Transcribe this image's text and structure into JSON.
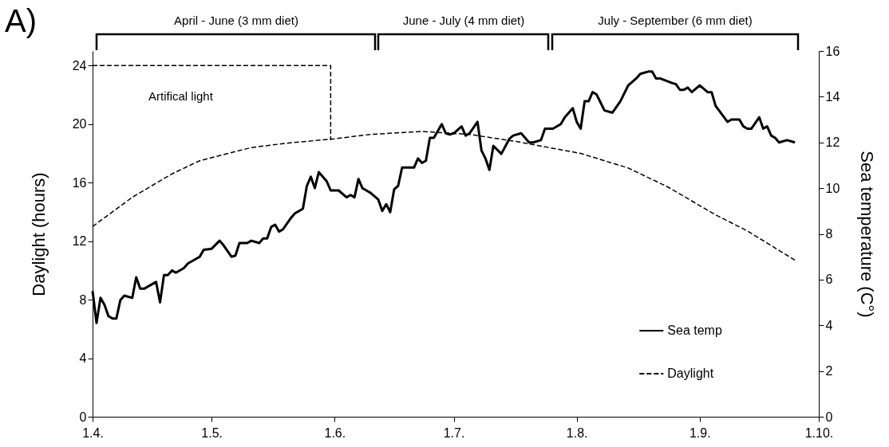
{
  "chart_data": {
    "type": "line",
    "ylabel": "Daylight (hours)",
    "y2label": "Sea temperature (C°)",
    "xlim": [
      "--04-01",
      "--10-01"
    ],
    "xticks": [
      {
        "value": "--04-01",
        "label": "1.4."
      },
      {
        "value": "--05-01",
        "label": "1.5."
      },
      {
        "value": "--06-01",
        "label": "1.6."
      },
      {
        "value": "--07-01",
        "label": "1.7."
      },
      {
        "value": "--08-01",
        "label": "1.8."
      },
      {
        "value": "--09-01",
        "label": "1.9."
      },
      {
        "value": "--10-01",
        "label": "1.10."
      }
    ],
    "ylim": [
      0,
      25
    ],
    "yticks": [
      0,
      4,
      8,
      12,
      16,
      20,
      24
    ],
    "y2lim": [
      0,
      16
    ],
    "y2ticks": [
      0,
      2,
      4,
      6,
      8,
      10,
      12,
      14,
      16
    ],
    "legend": "bottom right",
    "series": [
      {
        "name": "Sea temp",
        "color": "#000000",
        "axis": "y2",
        "line_style": "solid",
        "x": [
          "--04-01",
          "--04-02",
          "--04-03",
          "--04-04",
          "--04-05",
          "--04-06",
          "--04-07",
          "--04-08",
          "--04-09",
          "--04-11",
          "--04-12",
          "--04-13",
          "--04-14",
          "--04-16",
          "--04-17",
          "--04-18",
          "--04-19",
          "--04-20",
          "--04-21",
          "--04-22",
          "--04-24",
          "--04-25",
          "--04-28",
          "--04-29",
          "--05-01",
          "--05-03",
          "--05-04",
          "--05-06",
          "--05-07",
          "--05-08",
          "--05-10",
          "--05-11",
          "--05-13",
          "--05-14",
          "--05-15",
          "--05-16",
          "--05-17",
          "--05-18",
          "--05-19",
          "--05-21",
          "--05-22",
          "--05-24",
          "--05-25",
          "--05-26",
          "--05-27",
          "--05-28",
          "--05-30",
          "--05-31",
          "--06-01",
          "--06-02",
          "--06-04",
          "--06-05",
          "--06-06",
          "--06-07",
          "--06-08",
          "--06-09",
          "--06-10",
          "--06-12",
          "--06-13",
          "--06-14",
          "--06-15",
          "--06-16",
          "--06-17",
          "--06-18",
          "--06-20",
          "--06-21",
          "--06-22",
          "--06-23",
          "--06-24",
          "--06-25",
          "--06-26",
          "--06-28",
          "--06-29",
          "--06-30",
          "--07-01",
          "--07-03",
          "--07-04",
          "--07-05",
          "--07-07",
          "--07-08",
          "--07-09",
          "--07-10",
          "--07-11",
          "--07-13",
          "--07-15",
          "--07-16",
          "--07-18",
          "--07-20",
          "--07-21",
          "--07-23",
          "--07-24",
          "--07-26",
          "--07-28",
          "--07-29",
          "--07-31",
          "--08-01",
          "--08-02",
          "--08-03",
          "--08-04",
          "--08-05",
          "--08-06",
          "--08-08",
          "--08-10",
          "--08-12",
          "--08-14",
          "--08-16",
          "--08-17",
          "--08-19",
          "--08-20",
          "--08-21",
          "--08-22",
          "--08-25",
          "--08-26",
          "--08-27",
          "--08-28",
          "--08-29",
          "--08-30",
          "--09-01",
          "--09-03",
          "--09-04",
          "--09-05",
          "--09-08",
          "--09-09",
          "--09-11",
          "--09-12",
          "--09-13",
          "--09-14",
          "--09-16",
          "--09-17",
          "--09-18",
          "--09-19",
          "--09-20",
          "--09-21",
          "--09-23",
          "--09-25"
        ],
        "values": [
          5.5,
          4.1,
          5.2,
          4.9,
          4.4,
          4.3,
          4.3,
          5.1,
          5.3,
          5.2,
          6.1,
          5.6,
          5.6,
          5.8,
          5.9,
          5.0,
          6.2,
          6.2,
          6.4,
          6.3,
          6.5,
          6.7,
          7.0,
          7.3,
          7.35,
          7.7,
          7.5,
          7.0,
          7.05,
          7.6,
          7.6,
          7.7,
          7.6,
          7.8,
          7.8,
          8.3,
          8.4,
          8.1,
          8.2,
          8.7,
          8.9,
          9.1,
          10.1,
          10.5,
          10.0,
          10.7,
          10.3,
          9.9,
          9.9,
          9.9,
          9.6,
          9.7,
          9.6,
          10.4,
          10.0,
          9.9,
          9.8,
          9.5,
          9.0,
          9.3,
          8.95,
          9.95,
          10.1,
          10.9,
          10.9,
          10.9,
          11.3,
          11.1,
          11.2,
          12.2,
          12.2,
          12.8,
          12.4,
          12.35,
          12.4,
          12.7,
          12.3,
          12.4,
          12.9,
          11.65,
          11.3,
          10.8,
          11.85,
          11.5,
          12.15,
          12.3,
          12.4,
          12.0,
          12.0,
          12.1,
          12.6,
          12.6,
          12.8,
          13.1,
          13.5,
          12.9,
          12.6,
          13.8,
          13.8,
          14.2,
          14.1,
          13.4,
          13.3,
          13.8,
          14.5,
          14.8,
          15.0,
          15.1,
          15.1,
          14.8,
          14.8,
          14.6,
          14.55,
          14.3,
          14.3,
          14.4,
          14.2,
          14.5,
          14.2,
          14.2,
          13.6,
          12.9,
          13.0,
          13.0,
          12.7,
          12.6,
          12.6,
          13.1,
          12.6,
          12.7,
          12.3,
          12.2,
          12.0,
          12.1,
          12.0
        ]
      },
      {
        "name": "Daylight",
        "color": "#000000",
        "line_style": "dashed",
        "x": [
          "--04-01",
          "--04-11",
          "--04-21",
          "--04-28",
          "--05-11",
          "--05-20",
          "--06-01",
          "--06-10",
          "--06-23",
          "--07-05",
          "--07-17",
          "--08-02",
          "--08-14",
          "--08-24",
          "--09-05",
          "--09-13",
          "--09-25"
        ],
        "values": [
          13.0,
          15.0,
          16.6,
          17.5,
          18.4,
          18.7,
          19.0,
          19.3,
          19.5,
          19.3,
          18.8,
          18.0,
          17.0,
          15.7,
          13.8,
          12.7,
          10.7
        ]
      },
      {
        "color": "#000000",
        "line_style": "dashed",
        "x": [
          "--04-01",
          "--05-31",
          "--05-31"
        ],
        "values": [
          24,
          24,
          18.9
        ]
      }
    ],
    "annotations": [
      "A)",
      "April - June (3 mm diet)",
      "June - July (4 mm diet)",
      "July - September (6 mm diet)",
      "Artifical light"
    ]
  }
}
